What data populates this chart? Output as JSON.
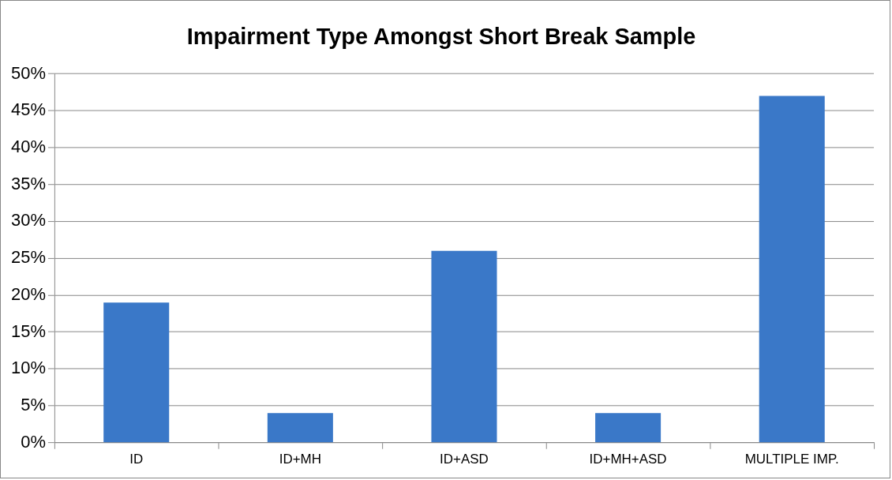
{
  "chart_data": {
    "type": "bar",
    "title": "Impairment Type Amongst Short Break Sample",
    "categories": [
      "ID",
      "ID+MH",
      "ID+ASD",
      "ID+MH+ASD",
      "MULTIPLE IMP."
    ],
    "values": [
      19,
      4,
      26,
      4,
      47
    ],
    "color": "#3a78c8",
    "ylim": [
      0,
      50
    ],
    "yticks": [
      {
        "value": 0,
        "label": "0%"
      },
      {
        "value": 5,
        "label": "5%"
      },
      {
        "value": 10,
        "label": "10%"
      },
      {
        "value": 15,
        "label": "15%"
      },
      {
        "value": 20,
        "label": "20%"
      },
      {
        "value": 25,
        "label": "25%"
      },
      {
        "value": 30,
        "label": "30%"
      },
      {
        "value": 35,
        "label": "35%"
      },
      {
        "value": 40,
        "label": "40%"
      },
      {
        "value": 45,
        "label": "45%"
      },
      {
        "value": 50,
        "label": "50%"
      }
    ],
    "grid": "y",
    "legend": false
  }
}
